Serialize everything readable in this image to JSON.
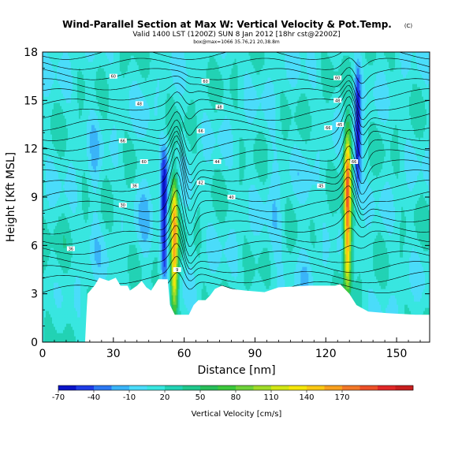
{
  "title": {
    "main": "Wind-Parallel Section at Max W: Vertical Velocity & Pot.Temp.",
    "mark": "(C)",
    "valid_line": "Valid 1400 LST (1200Z) SUN 8 Jan 2012 [18hr cst@2200Z]",
    "sub_line": "box@max=1066 35.76,21 20,38.8m"
  },
  "colorbar": {
    "label": "Vertical Velocity [cm/s]",
    "tick_labels": [
      "-70",
      "-40",
      "-10",
      "20",
      "50",
      "80",
      "110",
      "140",
      "170"
    ],
    "colors": [
      "#0a14c8",
      "#1e3ce6",
      "#2c78f2",
      "#3ab4f8",
      "#4adcfa",
      "#38e6e0",
      "#22d2b4",
      "#20c88c",
      "#28be5a",
      "#3cc83c",
      "#6ed23a",
      "#a0dc28",
      "#d2e614",
      "#f5e60a",
      "#fac814",
      "#f8a01e",
      "#f27828",
      "#ec5028",
      "#e02828",
      "#c81e1e"
    ]
  },
  "chart_data": {
    "type": "heatmap",
    "xlabel": "Distance [nm]",
    "ylabel": "Height [Kft MSL]",
    "xlim": [
      0,
      164
    ],
    "ylim": [
      0,
      18
    ],
    "xticks": [
      0,
      30,
      60,
      90,
      120,
      150
    ],
    "yticks": [
      0,
      3,
      6,
      9,
      12,
      15,
      18
    ],
    "field": "Vertical Velocity [cm/s]",
    "contour_field": "Potential Temperature",
    "contour_labels": [
      {
        "x": 12,
        "y": 5.8,
        "text": "36"
      },
      {
        "x": 34,
        "y": 8.5,
        "text": "30"
      },
      {
        "x": 39,
        "y": 9.7,
        "text": "36"
      },
      {
        "x": 43,
        "y": 11.2,
        "text": "60"
      },
      {
        "x": 34,
        "y": 12.5,
        "text": "66"
      },
      {
        "x": 41,
        "y": 14.8,
        "text": "48"
      },
      {
        "x": 30,
        "y": 16.5,
        "text": "60"
      },
      {
        "x": 57,
        "y": 4.5,
        "text": "9"
      },
      {
        "x": 67,
        "y": 9.9,
        "text": "42"
      },
      {
        "x": 74,
        "y": 11.2,
        "text": "44"
      },
      {
        "x": 67,
        "y": 13.1,
        "text": "66"
      },
      {
        "x": 75,
        "y": 14.6,
        "text": "48"
      },
      {
        "x": 69,
        "y": 16.2,
        "text": "60"
      },
      {
        "x": 80,
        "y": 9.0,
        "text": "40"
      },
      {
        "x": 118,
        "y": 9.7,
        "text": "45"
      },
      {
        "x": 121,
        "y": 13.3,
        "text": "66"
      },
      {
        "x": 126,
        "y": 13.5,
        "text": "45"
      },
      {
        "x": 125,
        "y": 15.0,
        "text": "48"
      },
      {
        "x": 125,
        "y": 16.4,
        "text": "60"
      },
      {
        "x": 132,
        "y": 11.2,
        "text": "66"
      }
    ],
    "terrain": [
      [
        0,
        0
      ],
      [
        18,
        0
      ],
      [
        19,
        3.0
      ],
      [
        22,
        3.5
      ],
      [
        24,
        4
      ],
      [
        28,
        3.8
      ],
      [
        31,
        4
      ],
      [
        33,
        3.5
      ],
      [
        36,
        3.5
      ],
      [
        37,
        3.2
      ],
      [
        40,
        3.5
      ],
      [
        42,
        3.8
      ],
      [
        44,
        3.4
      ],
      [
        46,
        3.2
      ],
      [
        49,
        3.9
      ],
      [
        53,
        3.9
      ],
      [
        54,
        2.3
      ],
      [
        56,
        1.7
      ],
      [
        58,
        1.7
      ],
      [
        62,
        1.7
      ],
      [
        64,
        2.3
      ],
      [
        66,
        2.6
      ],
      [
        69,
        2.6
      ],
      [
        71,
        2.9
      ],
      [
        73,
        3.3
      ],
      [
        76,
        3.5
      ],
      [
        80,
        3.3
      ],
      [
        86,
        3.2
      ],
      [
        94,
        3.1
      ],
      [
        100,
        3.4
      ],
      [
        112,
        3.5
      ],
      [
        124,
        3.5
      ],
      [
        126,
        3.6
      ],
      [
        130,
        3.0
      ],
      [
        133,
        2.3
      ],
      [
        138,
        1.9
      ],
      [
        146,
        1.8
      ],
      [
        158,
        1.7
      ],
      [
        164,
        1.7
      ],
      [
        164,
        0
      ]
    ],
    "features": [
      {
        "type": "downdraft",
        "x": 51.5,
        "y_range": [
          4,
          12
        ],
        "min_w": -70
      },
      {
        "type": "updraft",
        "x": 55.8,
        "y_range": [
          2,
          10
        ],
        "max_w": 140
      },
      {
        "type": "updraft",
        "x": 129.2,
        "y_range": [
          3.5,
          13
        ],
        "max_w": 170
      },
      {
        "type": "downdraft",
        "x": 133.5,
        "y_range": [
          9,
          17
        ],
        "min_w": -70
      }
    ]
  }
}
